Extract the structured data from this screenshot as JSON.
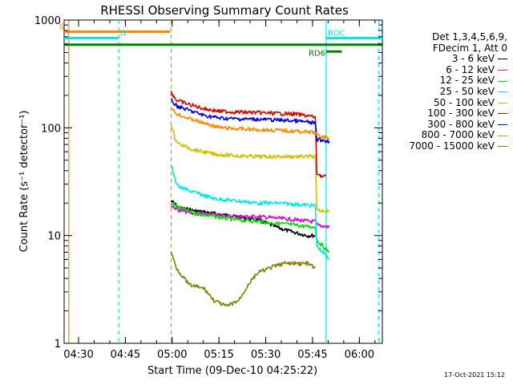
{
  "chart_data": {
    "type": "line",
    "title": "RHESSI Observing Summary Count Rates",
    "xlabel": "Start Time (09-Dec-10 04:25:22)",
    "ylabel": "Count Rate (s⁻¹ detector⁻¹)",
    "ylog": true,
    "ylim": [
      1,
      1000
    ],
    "xlim_minutes": [
      0,
      102
    ],
    "x_ticks": [
      {
        "label": "04:30",
        "minute": 4.63
      },
      {
        "label": "04:45",
        "minute": 19.63
      },
      {
        "label": "05:00",
        "minute": 34.63
      },
      {
        "label": "05:15",
        "minute": 49.63
      },
      {
        "label": "05:30",
        "minute": 64.63
      },
      {
        "label": "05:45",
        "minute": 79.63
      },
      {
        "label": "06:00",
        "minute": 94.63
      }
    ],
    "y_ticks": [
      {
        "label": "1",
        "value": 1
      },
      {
        "label": "10",
        "value": 10
      },
      {
        "label": "100",
        "value": 100
      },
      {
        "label": "1000",
        "value": 1000
      }
    ],
    "legend_header": [
      "Det 1,3,4,5,6,9,",
      "FDecim 1, Att 0"
    ],
    "series": [
      {
        "name": "3 - 6 keV",
        "color": "#000000",
        "points": [
          [
            34.3,
            21
          ],
          [
            37,
            18
          ],
          [
            42,
            17
          ],
          [
            48,
            16
          ],
          [
            55,
            15
          ],
          [
            62,
            14
          ],
          [
            68,
            12
          ],
          [
            72,
            11
          ],
          [
            78,
            10
          ],
          [
            80.5,
            10
          ]
        ]
      },
      {
        "name": "6 - 12 keV",
        "color": "#e000e0",
        "points": [
          [
            34.3,
            19
          ],
          [
            37,
            17
          ],
          [
            42,
            16
          ],
          [
            48,
            15.5
          ],
          [
            55,
            15
          ],
          [
            62,
            15
          ],
          [
            68,
            14.5
          ],
          [
            74,
            14
          ],
          [
            79,
            13.5
          ],
          [
            80.5,
            13.5
          ],
          [
            81,
            12.5
          ],
          [
            85,
            12
          ]
        ]
      },
      {
        "name": "12 - 25 keV",
        "color": "#00e000",
        "points": [
          [
            34.3,
            20
          ],
          [
            37,
            18
          ],
          [
            42,
            16
          ],
          [
            48,
            15
          ],
          [
            55,
            14
          ],
          [
            62,
            13.5
          ],
          [
            68,
            13
          ],
          [
            74,
            12.5
          ],
          [
            79,
            12
          ],
          [
            80.5,
            12
          ],
          [
            81,
            9
          ],
          [
            85,
            7
          ]
        ]
      },
      {
        "name": "25 - 50 keV",
        "color": "#00e8e8",
        "points": [
          [
            34.3,
            45
          ],
          [
            35.5,
            33
          ],
          [
            37,
            28
          ],
          [
            42,
            25
          ],
          [
            48,
            22
          ],
          [
            55,
            21
          ],
          [
            62,
            20
          ],
          [
            68,
            20
          ],
          [
            74,
            19.5
          ],
          [
            79,
            19
          ],
          [
            80.5,
            19
          ],
          [
            81,
            8
          ],
          [
            85,
            6
          ]
        ]
      },
      {
        "name": "50 - 100 keV",
        "color": "#d0c000",
        "points": [
          [
            34.3,
            110
          ],
          [
            35.5,
            80
          ],
          [
            37,
            70
          ],
          [
            42,
            62
          ],
          [
            48,
            57
          ],
          [
            55,
            55
          ],
          [
            62,
            54
          ],
          [
            68,
            54
          ],
          [
            74,
            54
          ],
          [
            79,
            54
          ],
          [
            80.5,
            54
          ],
          [
            81,
            17
          ],
          [
            85,
            17
          ]
        ]
      },
      {
        "name": "100 - 300 keV",
        "color": "#e00000",
        "points": [
          [
            34.3,
            215
          ],
          [
            36,
            180
          ],
          [
            40,
            165
          ],
          [
            45,
            150
          ],
          [
            50,
            142
          ],
          [
            55,
            140
          ],
          [
            62,
            138
          ],
          [
            68,
            136
          ],
          [
            74,
            134
          ],
          [
            79,
            128
          ],
          [
            80.5,
            125
          ],
          [
            81,
            38
          ],
          [
            83,
            35
          ],
          [
            84,
            36
          ]
        ]
      },
      {
        "name": "300 - 800 keV",
        "color": "#0000e0",
        "points": [
          [
            34.3,
            180
          ],
          [
            36,
            160
          ],
          [
            40,
            145
          ],
          [
            45,
            130
          ],
          [
            50,
            123
          ],
          [
            55,
            121
          ],
          [
            62,
            120
          ],
          [
            68,
            118
          ],
          [
            74,
            116
          ],
          [
            79,
            112
          ],
          [
            80.5,
            110
          ],
          [
            81,
            78
          ],
          [
            85,
            75
          ]
        ]
      },
      {
        "name": "800 - 7000 keV",
        "color": "#ff8800",
        "points": [
          [
            34.3,
            150
          ],
          [
            36,
            135
          ],
          [
            40,
            122
          ],
          [
            45,
            110
          ],
          [
            50,
            100
          ],
          [
            55,
            98
          ],
          [
            62,
            96
          ],
          [
            68,
            95
          ],
          [
            74,
            93
          ],
          [
            79,
            91
          ],
          [
            80.5,
            90
          ],
          [
            81,
            85
          ],
          [
            85,
            80
          ]
        ]
      },
      {
        "name": "7000 - 15000 keV",
        "color": "#808000",
        "points": [
          [
            34.3,
            7
          ],
          [
            36,
            5
          ],
          [
            40,
            3.5
          ],
          [
            45,
            3.2
          ],
          [
            48,
            2.5
          ],
          [
            52,
            2.2
          ],
          [
            56,
            2.5
          ],
          [
            59,
            3.5
          ],
          [
            62,
            4.5
          ],
          [
            66,
            5
          ],
          [
            70,
            5.5
          ],
          [
            74,
            5.5
          ],
          [
            78,
            5.5
          ],
          [
            80.5,
            5
          ]
        ]
      }
    ],
    "markers": [
      {
        "label": "S",
        "color": "#ff8800",
        "x0_minute": 0,
        "x1_minute": 34,
        "y_value": 780
      },
      {
        "label": "N",
        "color": "#00e8e8",
        "x0_minute": 0,
        "x1_minute": 17.5,
        "y_value": 680
      },
      {
        "label": "RD6",
        "color": "#008000",
        "x0_minute": 0,
        "x1_minute": 102,
        "y_value": 590
      },
      {
        "label": "RD6",
        "color": "#008000",
        "x0_minute": 84,
        "x1_minute": 89,
        "y_value": 510
      },
      {
        "label": "RDC",
        "color": "#00e8e8",
        "x0_minute": 84,
        "x1_minute": 102,
        "y_value": 680
      }
    ],
    "vlines": [
      {
        "minute": 1.5,
        "color": "#ff8800",
        "dashed": false
      },
      {
        "minute": 17.5,
        "color": "#00e8e8",
        "dashed": true
      },
      {
        "minute": 34.3,
        "color": "#ff8800",
        "dashed": true
      },
      {
        "minute": 84,
        "color": "#00e8e8",
        "dashed": false
      },
      {
        "minute": 100.8,
        "color": "#00e8e8",
        "dashed": true
      }
    ]
  },
  "footer": "17-Oct-2021 15:12"
}
